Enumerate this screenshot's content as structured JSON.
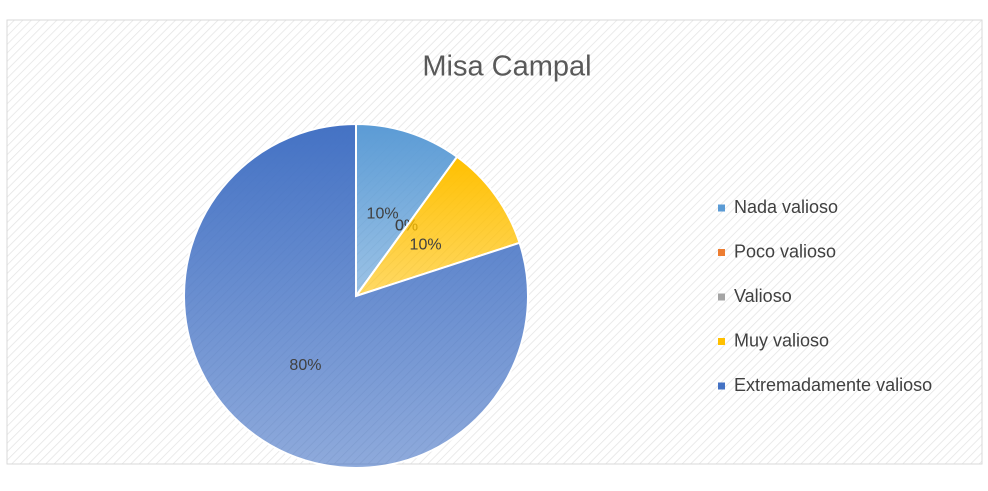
{
  "chart_data": {
    "type": "pie",
    "title": "Misa Campal",
    "categories": [
      "Nada valioso",
      "Poco valioso",
      "Valioso",
      "Muy valioso",
      "Extremadamente valioso"
    ],
    "values": [
      10,
      0,
      0,
      10,
      80
    ],
    "value_labels": [
      "10%",
      "0%",
      "0%",
      "10%",
      "80%"
    ],
    "colors": [
      "#5b9bd5",
      "#ed7d31",
      "#a5a5a5",
      "#ffc000",
      "#4472c4"
    ],
    "legend": "right"
  }
}
